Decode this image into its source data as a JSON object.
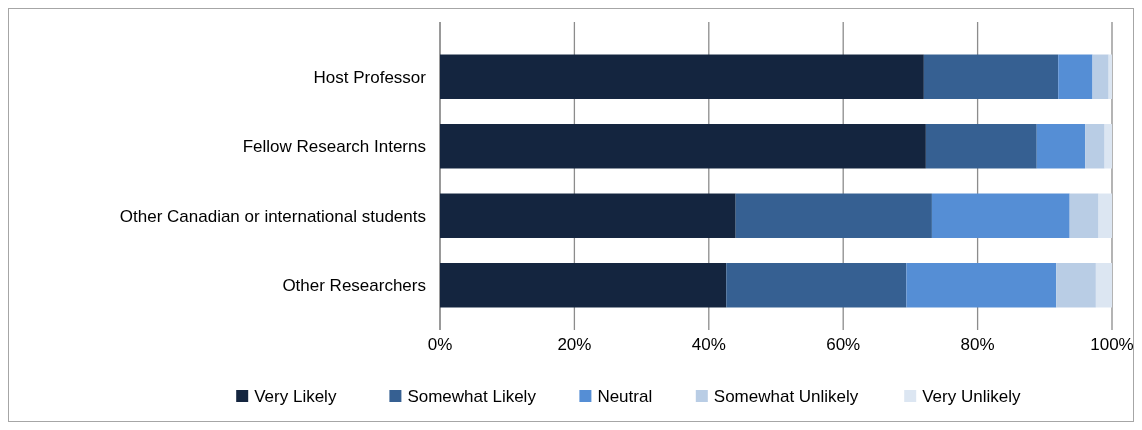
{
  "chart_data": {
    "type": "bar",
    "orientation": "horizontal",
    "stacked": true,
    "categories": [
      "Host Professor",
      "Fellow Research Interns",
      "Other Canadian or international students",
      "Other Researchers"
    ],
    "series": [
      {
        "name": "Very Likely",
        "color": "#14253f",
        "values": [
          72,
          72.3,
          44,
          42.6
        ]
      },
      {
        "name": "Somewhat Likely",
        "color": "#366092",
        "values": [
          20,
          16.5,
          29.2,
          26.8
        ]
      },
      {
        "name": "Neutral",
        "color": "#558ed5",
        "values": [
          5.1,
          7.2,
          20.5,
          22.3
        ]
      },
      {
        "name": "Somewhat Unlikely",
        "color": "#b9cde5",
        "values": [
          2.4,
          2.9,
          4.3,
          5.9
        ]
      },
      {
        "name": "Very Unlikely",
        "color": "#dce6f2",
        "values": [
          0.5,
          1.1,
          2,
          2.4
        ]
      }
    ],
    "xlim": [
      0,
      100
    ],
    "xticks": [
      {
        "value": 0,
        "label": "0%"
      },
      {
        "value": 20,
        "label": "20%"
      },
      {
        "value": 40,
        "label": "40%"
      },
      {
        "value": 60,
        "label": "60%"
      },
      {
        "value": 80,
        "label": "80%"
      },
      {
        "value": 100,
        "label": "100%"
      }
    ],
    "grid": "x",
    "legend": "bottom"
  }
}
